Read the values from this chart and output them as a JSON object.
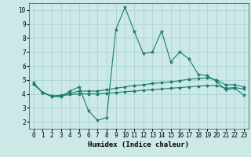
{
  "title": "",
  "xlabel": "Humidex (Indice chaleur)",
  "ylabel": "",
  "bg_color": "#cce9e8",
  "grid_color": "#aad4d2",
  "line_color": "#1a7a6e",
  "xlim": [
    -0.5,
    23.5
  ],
  "ylim": [
    1.5,
    10.5
  ],
  "xticks": [
    0,
    1,
    2,
    3,
    4,
    5,
    6,
    7,
    8,
    9,
    10,
    11,
    12,
    13,
    14,
    15,
    16,
    17,
    18,
    19,
    20,
    21,
    22,
    23
  ],
  "yticks": [
    2,
    3,
    4,
    5,
    6,
    7,
    8,
    9,
    10
  ],
  "main_x": [
    0,
    1,
    2,
    3,
    4,
    5,
    6,
    7,
    8,
    9,
    10,
    11,
    12,
    13,
    14,
    15,
    16,
    17,
    18,
    19,
    20,
    21,
    22,
    23
  ],
  "main_y": [
    4.8,
    4.1,
    3.8,
    3.8,
    4.2,
    4.5,
    2.8,
    2.1,
    2.3,
    8.6,
    10.2,
    8.5,
    6.9,
    7.0,
    8.5,
    6.3,
    7.0,
    6.5,
    5.4,
    5.3,
    4.9,
    4.3,
    4.4,
    3.9
  ],
  "line2_x": [
    0,
    1,
    2,
    3,
    4,
    5,
    6,
    7,
    8,
    9,
    10,
    11,
    12,
    13,
    14,
    15,
    16,
    17,
    18,
    19,
    20,
    21,
    22,
    23
  ],
  "line2_y": [
    4.7,
    4.1,
    3.85,
    3.85,
    3.95,
    4.0,
    4.0,
    4.0,
    4.05,
    4.1,
    4.15,
    4.2,
    4.25,
    4.3,
    4.35,
    4.4,
    4.45,
    4.5,
    4.55,
    4.6,
    4.6,
    4.4,
    4.45,
    4.35
  ],
  "line3_x": [
    0,
    1,
    2,
    3,
    4,
    5,
    6,
    7,
    8,
    9,
    10,
    11,
    12,
    13,
    14,
    15,
    16,
    17,
    18,
    19,
    20,
    21,
    22,
    23
  ],
  "line3_y": [
    4.7,
    4.1,
    3.85,
    3.9,
    4.05,
    4.2,
    4.2,
    4.2,
    4.3,
    4.4,
    4.5,
    4.6,
    4.65,
    4.75,
    4.8,
    4.85,
    4.95,
    5.05,
    5.1,
    5.15,
    5.0,
    4.65,
    4.65,
    4.5
  ],
  "xlabel_fontsize": 6.5,
  "tick_fontsize": 5.5
}
